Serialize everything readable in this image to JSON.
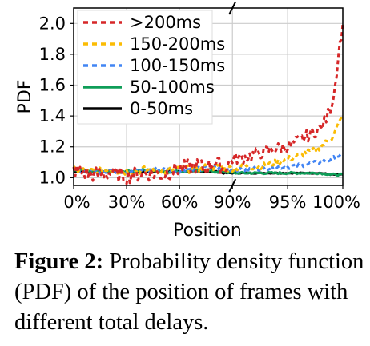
{
  "chart_data": {
    "type": "line",
    "ylabel": "PDF",
    "xlabel": "Position",
    "x_ticks": [
      "0%",
      "30%",
      "60%",
      "90%",
      "95%",
      "100%"
    ],
    "y_ticks": [
      1.0,
      1.2,
      1.4,
      1.6,
      1.8,
      2.0
    ],
    "ylim": [
      0.95,
      2.1
    ],
    "x_segments": [
      {
        "from": 0,
        "to": 90,
        "share": 0.59
      },
      {
        "from": 90,
        "to": 100,
        "share": 0.41
      }
    ],
    "axis_break_at": 90,
    "grid": true,
    "legend_position": "top-left",
    "series": [
      {
        "name": ">200ms",
        "color": "#d62728",
        "dash": "dotted",
        "points": [
          [
            0,
            1.05
          ],
          [
            10,
            1.02
          ],
          [
            20,
            1.03
          ],
          [
            30,
            1.01
          ],
          [
            40,
            1.03
          ],
          [
            50,
            1.02
          ],
          [
            60,
            1.06
          ],
          [
            70,
            1.08
          ],
          [
            75,
            1.06
          ],
          [
            80,
            1.1
          ],
          [
            85,
            1.06
          ],
          [
            90,
            1.12
          ],
          [
            91,
            1.13
          ],
          [
            92,
            1.15
          ],
          [
            93,
            1.17
          ],
          [
            94,
            1.19
          ],
          [
            95,
            1.2
          ],
          [
            96,
            1.24
          ],
          [
            97,
            1.28
          ],
          [
            98,
            1.32
          ],
          [
            98.5,
            1.38
          ],
          [
            99,
            1.48
          ],
          [
            99.3,
            1.6
          ],
          [
            99.6,
            1.8
          ],
          [
            100,
            2.0
          ]
        ]
      },
      {
        "name": "150-200ms",
        "color": "#fbbc04",
        "dash": "dotted",
        "points": [
          [
            0,
            1.05
          ],
          [
            10,
            1.04
          ],
          [
            20,
            1.05
          ],
          [
            30,
            1.04
          ],
          [
            40,
            1.05
          ],
          [
            50,
            1.04
          ],
          [
            60,
            1.05
          ],
          [
            70,
            1.06
          ],
          [
            80,
            1.07
          ],
          [
            85,
            1.06
          ],
          [
            90,
            1.06
          ],
          [
            91,
            1.07
          ],
          [
            92,
            1.07
          ],
          [
            93,
            1.08
          ],
          [
            94,
            1.1
          ],
          [
            95,
            1.12
          ],
          [
            96,
            1.14
          ],
          [
            97,
            1.17
          ],
          [
            98,
            1.2
          ],
          [
            99,
            1.26
          ],
          [
            99.5,
            1.33
          ],
          [
            100,
            1.4
          ]
        ]
      },
      {
        "name": "100-150ms",
        "color": "#4285f4",
        "dash": "dotted",
        "points": [
          [
            0,
            1.05
          ],
          [
            10,
            1.04
          ],
          [
            20,
            1.05
          ],
          [
            30,
            1.04
          ],
          [
            40,
            1.05
          ],
          [
            50,
            1.05
          ],
          [
            60,
            1.05
          ],
          [
            70,
            1.06
          ],
          [
            80,
            1.06
          ],
          [
            85,
            1.05
          ],
          [
            90,
            1.05
          ],
          [
            91,
            1.05
          ],
          [
            92,
            1.06
          ],
          [
            93,
            1.06
          ],
          [
            94,
            1.07
          ],
          [
            95,
            1.07
          ],
          [
            96,
            1.08
          ],
          [
            97,
            1.09
          ],
          [
            98,
            1.1
          ],
          [
            99,
            1.12
          ],
          [
            99.5,
            1.14
          ],
          [
            100,
            1.15
          ]
        ]
      },
      {
        "name": "50-100ms",
        "color": "#0f9d58",
        "dash": "solid",
        "points": [
          [
            0,
            1.05
          ],
          [
            10,
            1.04
          ],
          [
            20,
            1.04
          ],
          [
            30,
            1.04
          ],
          [
            40,
            1.05
          ],
          [
            50,
            1.04
          ],
          [
            60,
            1.04
          ],
          [
            70,
            1.05
          ],
          [
            80,
            1.04
          ],
          [
            85,
            1.04
          ],
          [
            90,
            1.03
          ],
          [
            92,
            1.03
          ],
          [
            94,
            1.03
          ],
          [
            96,
            1.03
          ],
          [
            98,
            1.03
          ],
          [
            99,
            1.02
          ],
          [
            100,
            1.02
          ]
        ]
      },
      {
        "name": "0-50ms",
        "color": "#000000",
        "dash": "solid",
        "points": [
          [
            0,
            1.04
          ],
          [
            10,
            1.04
          ],
          [
            20,
            1.04
          ],
          [
            30,
            1.04
          ],
          [
            40,
            1.04
          ],
          [
            50,
            1.04
          ],
          [
            60,
            1.04
          ],
          [
            70,
            1.04
          ],
          [
            80,
            1.04
          ],
          [
            85,
            1.03
          ],
          [
            90,
            1.03
          ],
          [
            92,
            1.03
          ],
          [
            94,
            1.03
          ],
          [
            96,
            1.03
          ],
          [
            98,
            1.03
          ],
          [
            99,
            1.02
          ],
          [
            100,
            1.02
          ]
        ]
      }
    ]
  },
  "caption": {
    "label": "Figure 2:",
    "text": "Probability density function (PDF) of the position of frames with different total delays."
  }
}
